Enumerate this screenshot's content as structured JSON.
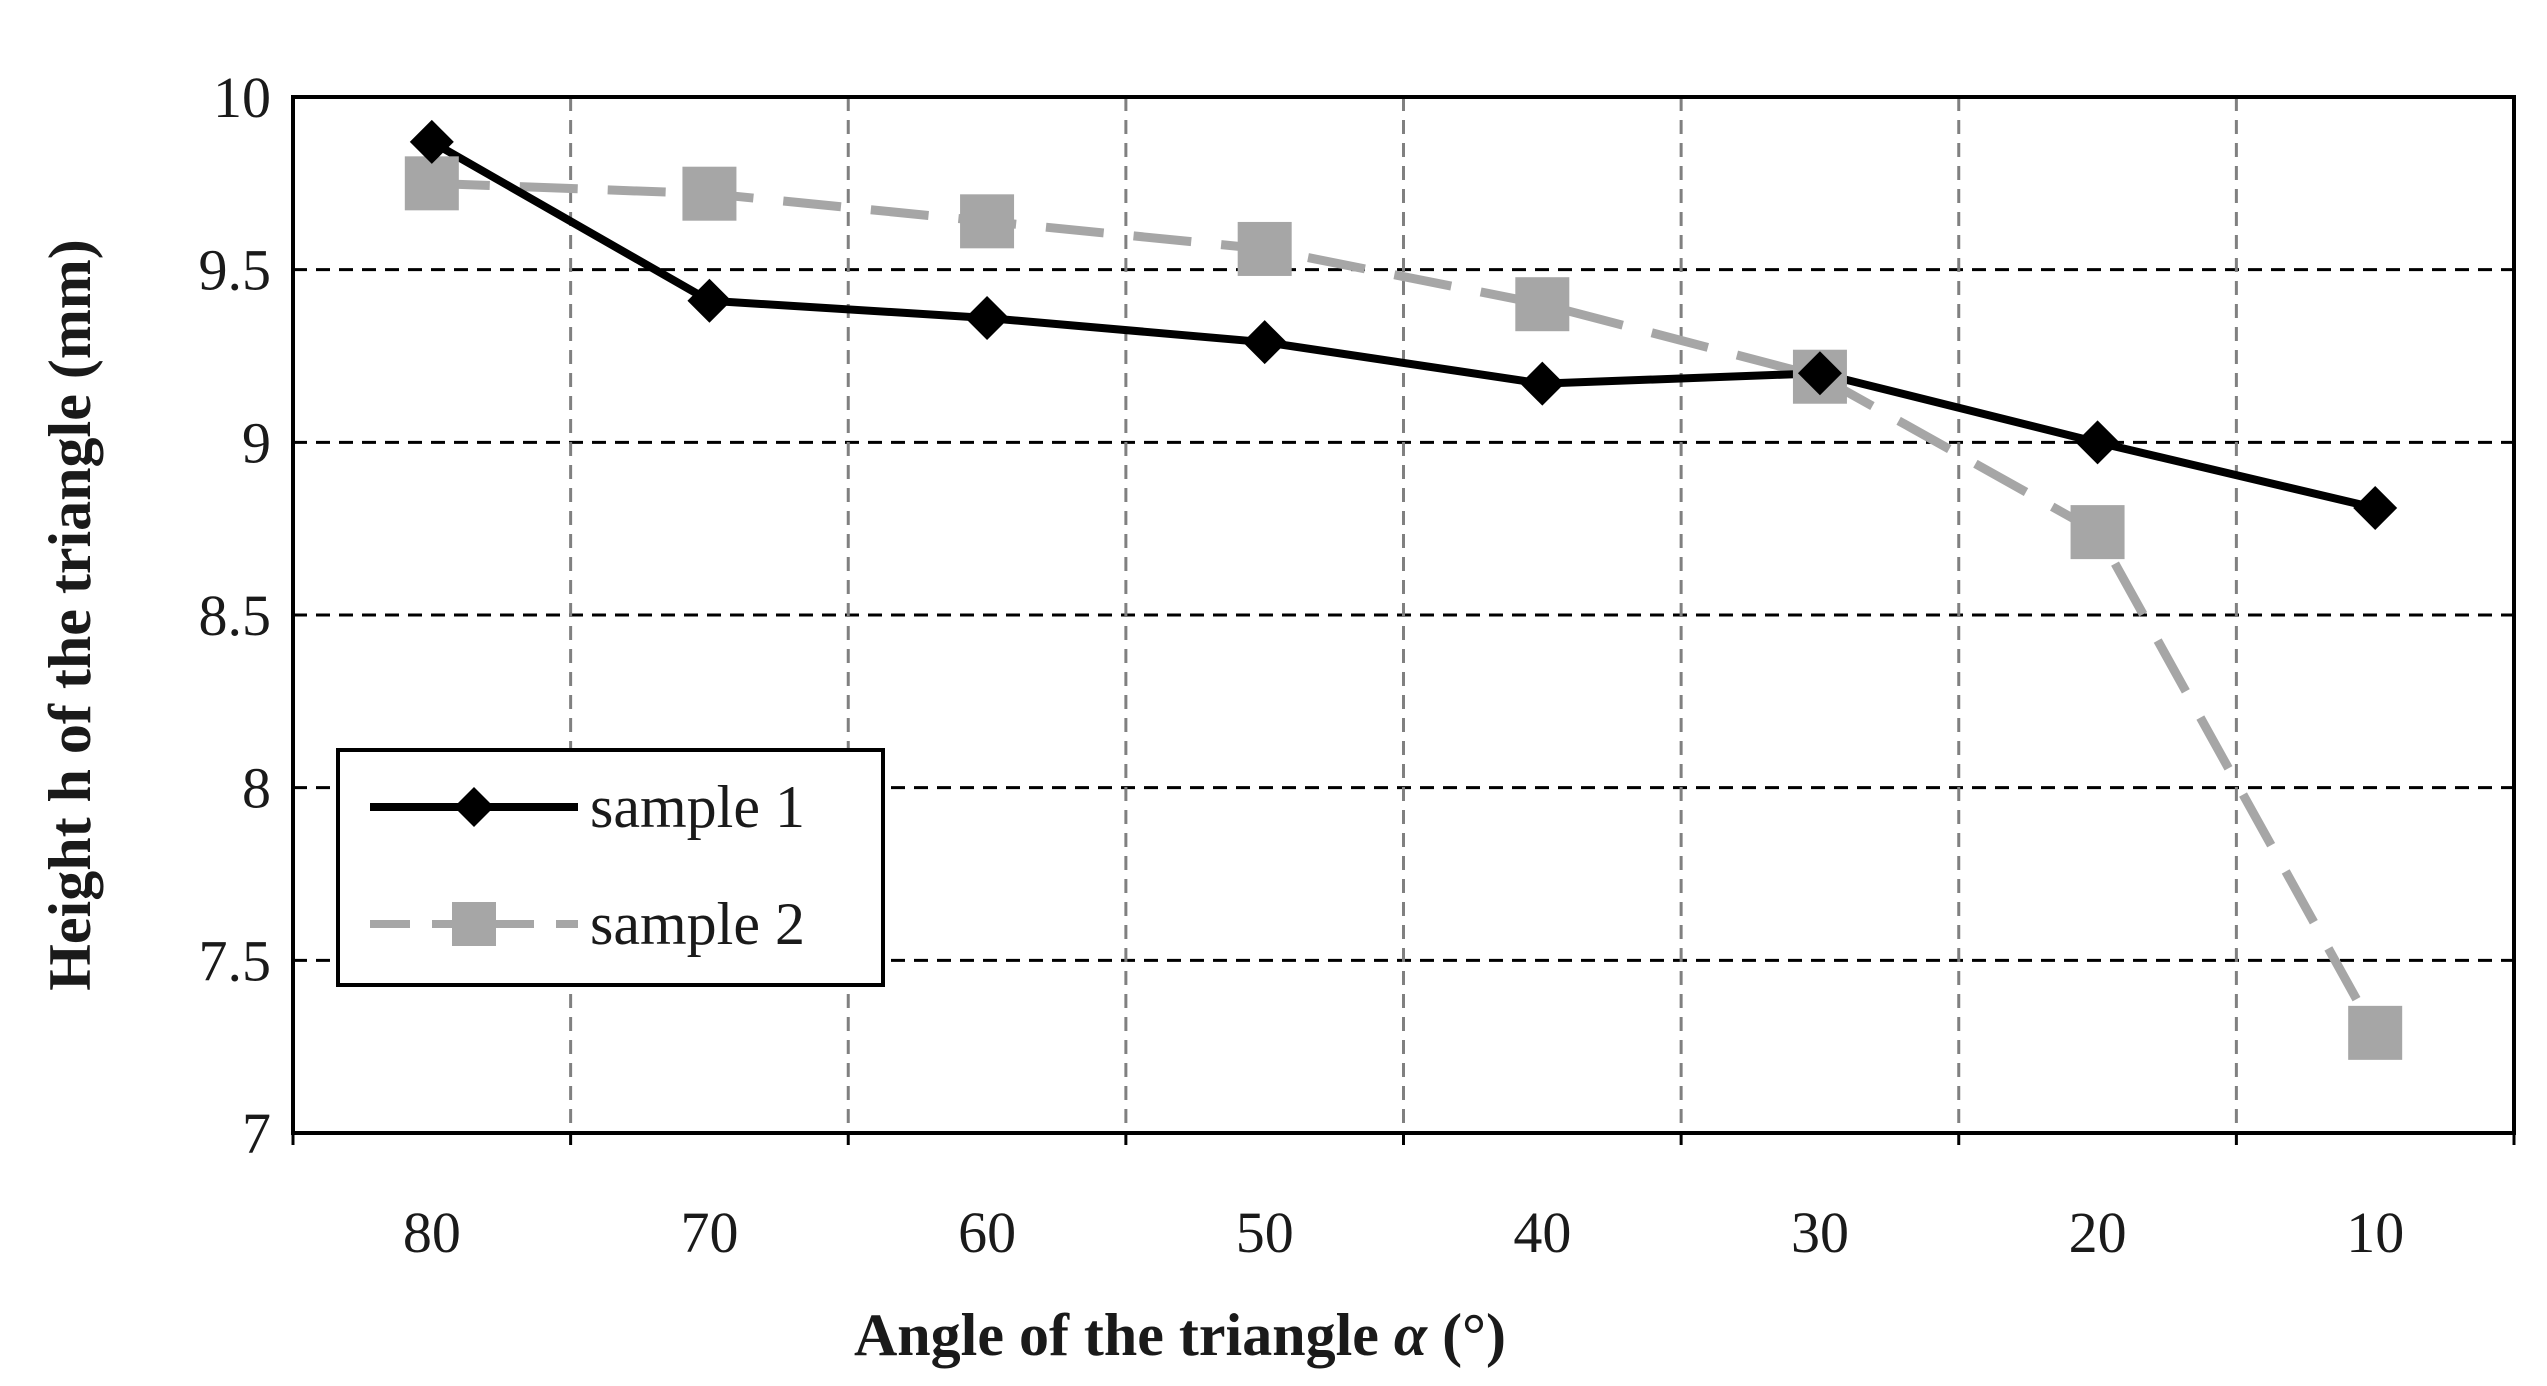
{
  "chart_data": {
    "type": "line",
    "title": "",
    "xlabel_prefix": "Angle of the triangle ",
    "xlabel_symbol": "α",
    "xlabel_suffix": " (°)",
    "ylabel": "Height h of the triangle (mm)",
    "categories": [
      "80",
      "70",
      "60",
      "50",
      "40",
      "30",
      "20",
      "10"
    ],
    "ylim": [
      7,
      10
    ],
    "yticks": [
      "7",
      "7.5",
      "8",
      "8.5",
      "9",
      "9.5",
      "10"
    ],
    "grid": true,
    "legend_position": "bottom-left",
    "series": [
      {
        "name": "sample 1",
        "marker": "diamond",
        "line_style": "solid",
        "color": "#000000",
        "values": [
          9.87,
          9.41,
          9.36,
          9.29,
          9.17,
          9.2,
          9.0,
          8.81
        ]
      },
      {
        "name": "sample 2",
        "marker": "square",
        "line_style": "dashed",
        "color": "#a6a6a6",
        "values": [
          9.75,
          9.72,
          9.64,
          9.56,
          9.4,
          9.19,
          8.74,
          7.29
        ]
      }
    ]
  }
}
